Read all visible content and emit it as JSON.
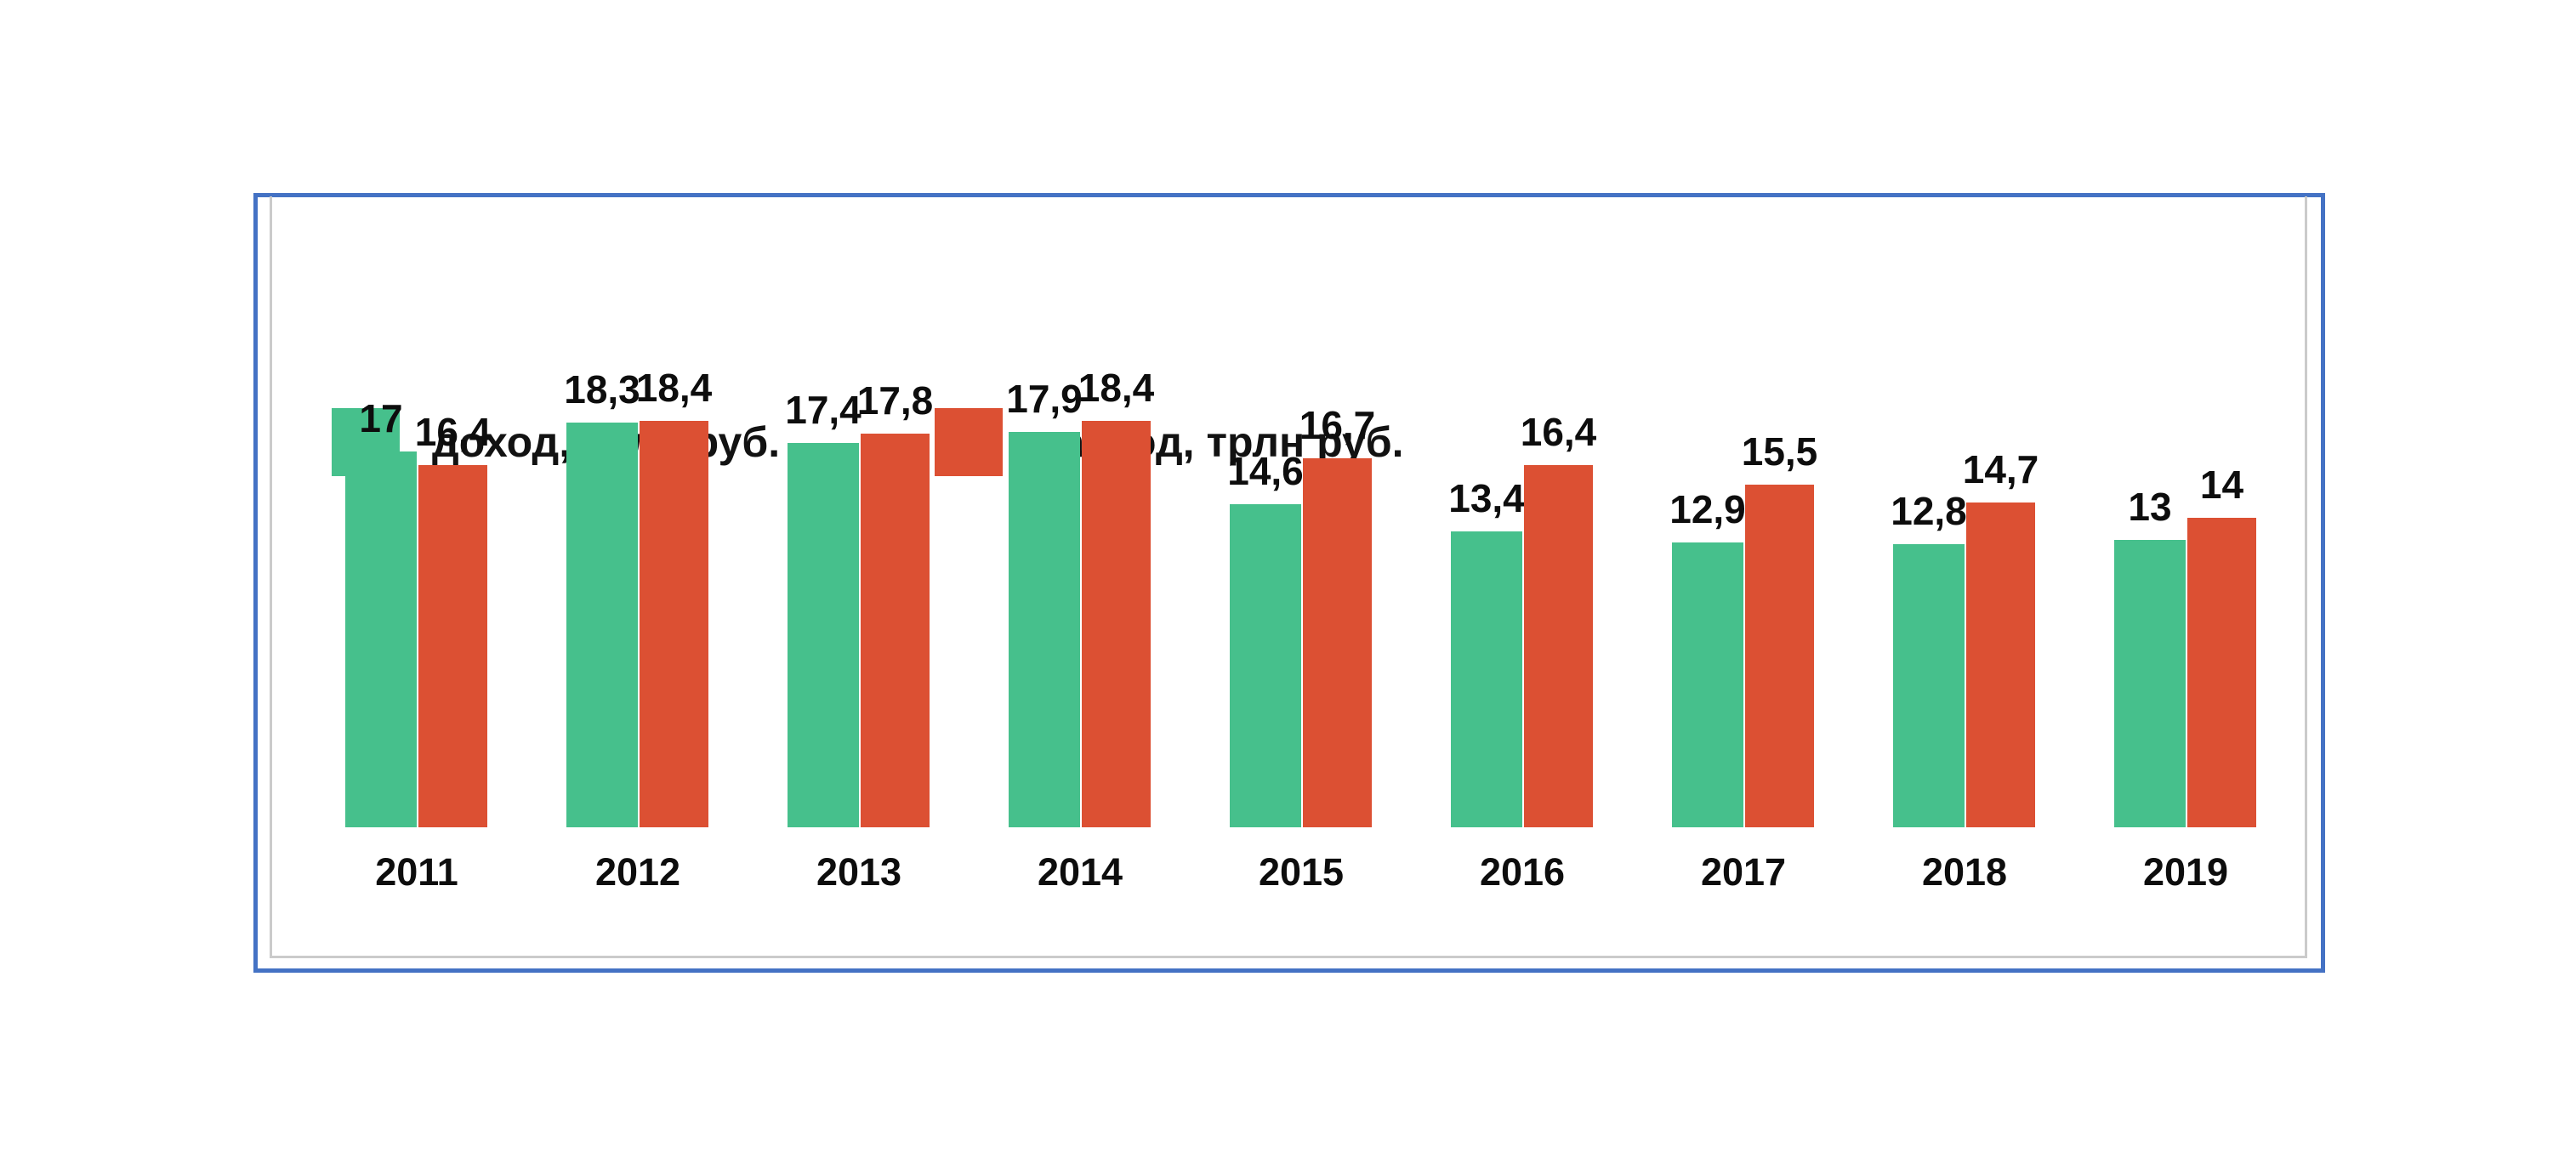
{
  "chart_data": {
    "type": "bar",
    "title": "",
    "xlabel": "",
    "ylabel": "",
    "categories": [
      "2011",
      "2012",
      "2013",
      "2014",
      "2015",
      "2016",
      "2017",
      "2018",
      "2019"
    ],
    "series": [
      {
        "name": "доход, трлн руб.",
        "color": "#46c08c",
        "values": [
          17,
          18.3,
          17.4,
          17.9,
          14.6,
          13.4,
          12.9,
          12.8,
          13
        ],
        "labels": [
          "17",
          "18,3",
          "17,4",
          "17,9",
          "14,6",
          "13,4",
          "12,9",
          "12,8",
          "13"
        ]
      },
      {
        "name": "расход, трлн руб.",
        "color": "#dc5033",
        "values": [
          16.4,
          18.4,
          17.8,
          18.4,
          16.7,
          16.4,
          15.5,
          14.7,
          14
        ],
        "labels": [
          "16,4",
          "18,4",
          "17,8",
          "18,4",
          "16,7",
          "16,4",
          "15,5",
          "14,7",
          "14"
        ]
      }
    ],
    "ylim": [
      0,
      18.4
    ],
    "grid": false,
    "axes_visible": false,
    "legend_position": "top-left",
    "value_labels_shown": true
  },
  "frame": {
    "outer_border_color": "#4472c4",
    "inner_border_color": "#cbcbcb",
    "background": "#ffffff"
  }
}
